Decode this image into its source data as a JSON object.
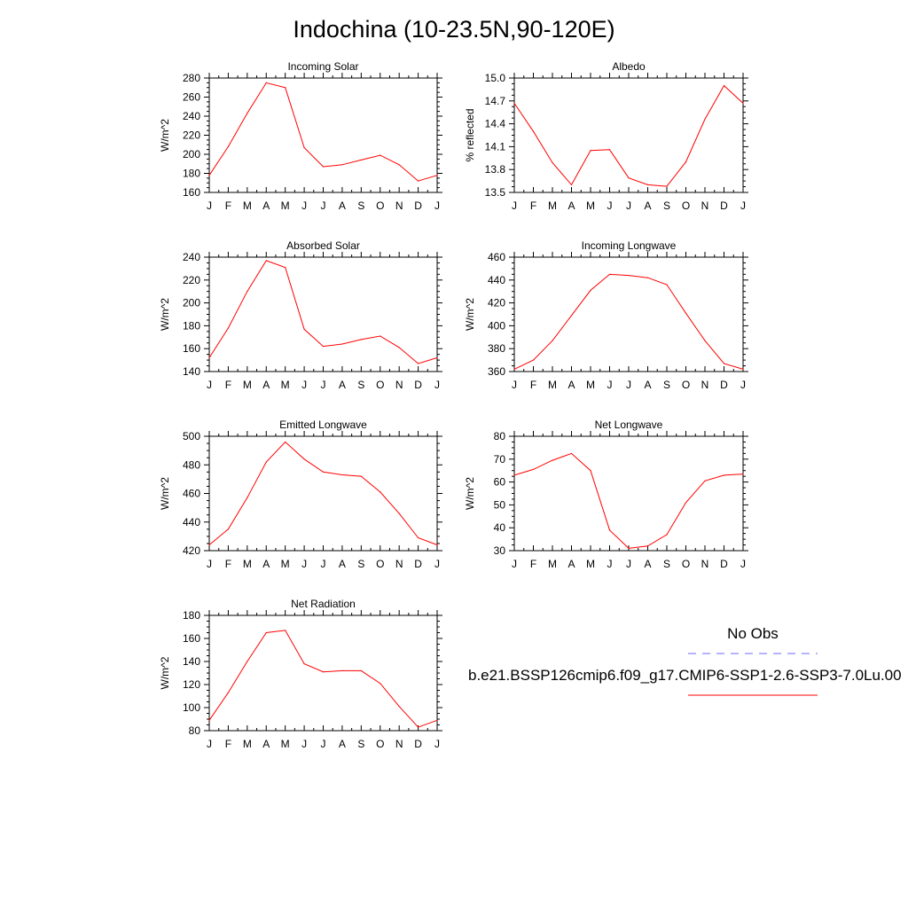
{
  "title": "Indochina (10-23.5N,90-120E)",
  "legend": {
    "obs_label": "No Obs",
    "case_label": "b.e21.BSSP126cmip6.f09_g17.CMIP6-SSP1-2.6-SSP3-7.0Lu.00",
    "obs_color": "#6b6bff",
    "case_color": "#ff0000"
  },
  "chart_data": [
    {
      "type": "line",
      "title": "Incoming Solar",
      "ylabel": "W/m^2",
      "ylim": [
        160,
        280
      ],
      "yticks": [
        "160",
        "180",
        "200",
        "220",
        "240",
        "260",
        "280"
      ],
      "categories": [
        "J",
        "F",
        "M",
        "A",
        "M",
        "J",
        "J",
        "A",
        "S",
        "O",
        "N",
        "D",
        "J"
      ],
      "series": [
        {
          "values": [
            178,
            208,
            243,
            275,
            270,
            207,
            187,
            189,
            194,
            199,
            189,
            172,
            178
          ]
        }
      ]
    },
    {
      "type": "line",
      "title": "Albedo",
      "ylabel": "% reflected",
      "ylim": [
        13.5,
        15.0
      ],
      "yticks": [
        "13.5",
        "13.8",
        "14.1",
        "14.4",
        "14.7",
        "15.0"
      ],
      "categories": [
        "J",
        "F",
        "M",
        "A",
        "M",
        "J",
        "J",
        "A",
        "S",
        "O",
        "N",
        "D",
        "J"
      ],
      "series": [
        {
          "values": [
            14.67,
            14.3,
            13.89,
            13.6,
            14.05,
            14.06,
            13.69,
            13.6,
            13.58,
            13.9,
            14.46,
            14.9,
            14.67
          ]
        }
      ]
    },
    {
      "type": "line",
      "title": "Absorbed Solar",
      "ylabel": "W/m^2",
      "ylim": [
        140,
        240
      ],
      "yticks": [
        "140",
        "160",
        "180",
        "200",
        "220",
        "240"
      ],
      "categories": [
        "J",
        "F",
        "M",
        "A",
        "M",
        "J",
        "J",
        "A",
        "S",
        "O",
        "N",
        "D",
        "J"
      ],
      "series": [
        {
          "values": [
            152,
            178,
            210,
            237,
            231,
            177,
            162,
            164,
            168,
            171,
            161,
            147,
            152
          ]
        }
      ]
    },
    {
      "type": "line",
      "title": "Incoming Longwave",
      "ylabel": "W/m^2",
      "ylim": [
        360,
        460
      ],
      "yticks": [
        "360",
        "380",
        "400",
        "420",
        "440",
        "460"
      ],
      "categories": [
        "J",
        "F",
        "M",
        "A",
        "M",
        "J",
        "J",
        "A",
        "S",
        "O",
        "N",
        "D",
        "J"
      ],
      "series": [
        {
          "values": [
            362,
            370,
            387,
            409,
            431,
            445,
            444,
            442,
            436,
            411,
            387,
            367,
            362
          ]
        }
      ]
    },
    {
      "type": "line",
      "title": "Emitted Longwave",
      "ylabel": "W/m^2",
      "ylim": [
        420,
        500
      ],
      "yticks": [
        "420",
        "440",
        "460",
        "480",
        "500"
      ],
      "categories": [
        "J",
        "F",
        "M",
        "A",
        "M",
        "J",
        "J",
        "A",
        "S",
        "O",
        "N",
        "D",
        "J"
      ],
      "series": [
        {
          "values": [
            424,
            435,
            457,
            482,
            496,
            484,
            475,
            473,
            472,
            461,
            446,
            429,
            424
          ]
        }
      ]
    },
    {
      "type": "line",
      "title": "Net Longwave",
      "ylabel": "W/m^2",
      "ylim": [
        30,
        80
      ],
      "yticks": [
        "30",
        "40",
        "50",
        "60",
        "70",
        "80"
      ],
      "categories": [
        "J",
        "F",
        "M",
        "A",
        "M",
        "J",
        "J",
        "A",
        "S",
        "O",
        "N",
        "D",
        "J"
      ],
      "series": [
        {
          "values": [
            63,
            65.5,
            69.5,
            72.5,
            65,
            39,
            31,
            32,
            37,
            51,
            60.5,
            63,
            63.5
          ]
        }
      ]
    },
    {
      "type": "line",
      "title": "Net Radiation",
      "ylabel": "W/m^2",
      "ylim": [
        80,
        180
      ],
      "yticks": [
        "80",
        "100",
        "120",
        "140",
        "160",
        "180"
      ],
      "categories": [
        "J",
        "F",
        "M",
        "A",
        "M",
        "J",
        "J",
        "A",
        "S",
        "O",
        "N",
        "D",
        "J"
      ],
      "series": [
        {
          "values": [
            89,
            113,
            140,
            165,
            167,
            138,
            131,
            132,
            132,
            121,
            101,
            83,
            89
          ]
        }
      ]
    }
  ]
}
